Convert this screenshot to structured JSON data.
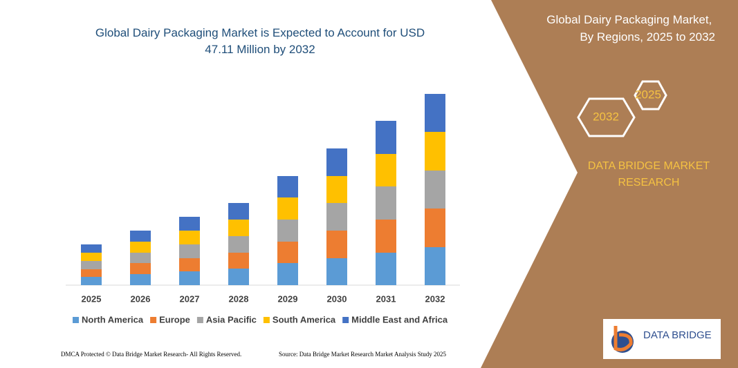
{
  "chart_data": {
    "type": "stacked-bar",
    "title": "Global Dairy Packaging Market is Expected to Account for USD 47.11 Million by 2032",
    "categories": [
      "2025",
      "2026",
      "2027",
      "2028",
      "2029",
      "2030",
      "2031",
      "2032"
    ],
    "series": [
      {
        "name": "North America",
        "color": "#5b9bd5",
        "values": [
          12,
          16,
          20,
          24,
          32,
          39,
          47,
          55
        ]
      },
      {
        "name": "Europe",
        "color": "#ed7d31",
        "values": [
          11,
          16,
          19,
          23,
          31,
          40,
          48,
          56
        ]
      },
      {
        "name": "Asia Pacific",
        "color": "#a5a5a5",
        "values": [
          12,
          15,
          20,
          24,
          32,
          40,
          48,
          55
        ]
      },
      {
        "name": "South America",
        "color": "#ffc000",
        "values": [
          12,
          16,
          20,
          24,
          32,
          39,
          47,
          56
        ]
      },
      {
        "name": "Middle East and Africa",
        "color": "#4472c4",
        "values": [
          12,
          16,
          20,
          24,
          31,
          40,
          48,
          55
        ]
      }
    ],
    "ylim": [
      0,
      300
    ]
  },
  "panel": {
    "title": "Global Dairy Packaging Market, By Regions, 2025 to 2032",
    "hex_right": "2025",
    "hex_left": "2032",
    "brand": "DATA BRIDGE MARKET RESEARCH",
    "logo": "DATA BRIDGE"
  },
  "footer": {
    "left": "DMCA Protected © Data Bridge Market Research- All Rights Reserved.",
    "right": "Source: Data Bridge Market Research  Market Analysis Study 2025"
  }
}
